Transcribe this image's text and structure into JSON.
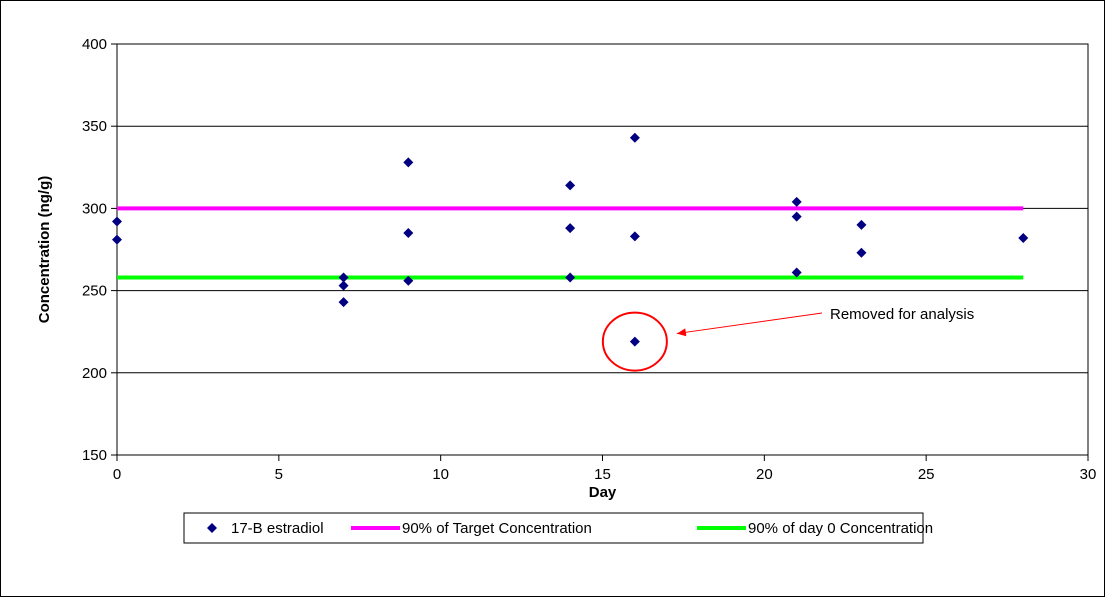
{
  "chart_data": {
    "type": "scatter",
    "xlabel": "Day",
    "ylabel": "Concentration (ng/g)",
    "xlim": [
      0,
      30
    ],
    "ylim": [
      150,
      400
    ],
    "x_ticks": [
      0,
      5,
      10,
      15,
      20,
      25,
      30
    ],
    "y_ticks": [
      150,
      200,
      250,
      300,
      350,
      400
    ],
    "grid": "horizontal",
    "legend_position": "bottom",
    "series": [
      {
        "name": "17-B estradiol",
        "kind": "scatter",
        "marker": "diamond",
        "color": "#000080",
        "points": [
          {
            "x": 0,
            "y": 292
          },
          {
            "x": 0,
            "y": 281
          },
          {
            "x": 7,
            "y": 258
          },
          {
            "x": 7,
            "y": 253
          },
          {
            "x": 7,
            "y": 243
          },
          {
            "x": 9,
            "y": 328
          },
          {
            "x": 9,
            "y": 285
          },
          {
            "x": 9,
            "y": 256
          },
          {
            "x": 14,
            "y": 314
          },
          {
            "x": 14,
            "y": 288
          },
          {
            "x": 14,
            "y": 258
          },
          {
            "x": 16,
            "y": 343
          },
          {
            "x": 16,
            "y": 283
          },
          {
            "x": 16,
            "y": 219
          },
          {
            "x": 21,
            "y": 304
          },
          {
            "x": 21,
            "y": 295
          },
          {
            "x": 21,
            "y": 261
          },
          {
            "x": 23,
            "y": 290
          },
          {
            "x": 23,
            "y": 273
          },
          {
            "x": 28,
            "y": 282
          }
        ]
      },
      {
        "name": "90% of Target Concentration",
        "kind": "line",
        "color": "#ff00ff",
        "points": [
          {
            "x": 0,
            "y": 300
          },
          {
            "x": 28,
            "y": 300
          }
        ]
      },
      {
        "name": "90% of day 0 Concentration",
        "kind": "line",
        "color": "#00ff00",
        "points": [
          {
            "x": 0,
            "y": 258
          },
          {
            "x": 28,
            "y": 258
          }
        ]
      }
    ],
    "annotations": [
      {
        "text": "Removed for analysis",
        "target": {
          "x": 16,
          "y": 219
        },
        "circle_color": "#ff0000",
        "arrow_color": "#ff0000"
      }
    ]
  }
}
